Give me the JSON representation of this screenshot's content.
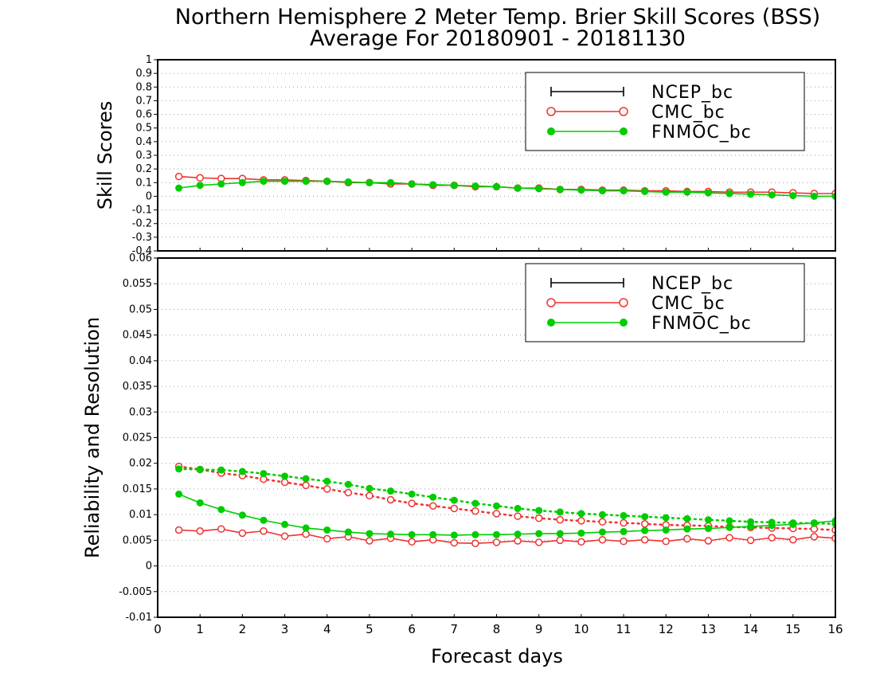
{
  "chart_data": {
    "type": "line",
    "title": "Northern Hemisphere 2 Meter Temp. Brier Skill Scores (BSS)",
    "subtitle": "Average For 20180901 - 20181130",
    "xlabel": "Forecast days",
    "xlim": [
      0,
      16
    ],
    "xticks": [
      "0",
      "1",
      "2",
      "3",
      "4",
      "5",
      "6",
      "7",
      "8",
      "9",
      "10",
      "11",
      "12",
      "13",
      "14",
      "15",
      "16"
    ],
    "x": [
      0.5,
      1,
      1.5,
      2,
      2.5,
      3,
      3.5,
      4,
      4.5,
      5,
      5.5,
      6,
      6.5,
      7,
      7.5,
      8,
      8.5,
      9,
      9.5,
      10,
      10.5,
      11,
      11.5,
      12,
      12.5,
      13,
      13.5,
      14,
      14.5,
      15,
      15.5,
      16
    ],
    "colors": {
      "NCEP_bc": "#000000",
      "CMC_bc": "#ee3333",
      "FNMOC_bc": "#00cc00"
    },
    "panels": [
      {
        "ylabel": "Skill Scores",
        "ylim": [
          -0.4,
          1
        ],
        "yticks": [
          "1",
          "0.9",
          "0.8",
          "0.7",
          "0.6",
          "0.5",
          "0.4",
          "0.3",
          "0.2",
          "0.1",
          "0",
          "-0.1",
          "-0.2",
          "-0.3",
          "-0.4"
        ],
        "grid": true,
        "legend": "top-right",
        "series": [
          {
            "name": "NCEP_bc",
            "marker": "plus",
            "style": "solid",
            "values": []
          },
          {
            "name": "CMC_bc",
            "marker": "open-circle",
            "style": "solid",
            "values": [
              0.145,
              0.135,
              0.13,
              0.13,
              0.12,
              0.12,
              0.115,
              0.11,
              0.1,
              0.1,
              0.09,
              0.09,
              0.08,
              0.08,
              0.07,
              0.07,
              0.06,
              0.06,
              0.05,
              0.05,
              0.045,
              0.045,
              0.04,
              0.04,
              0.035,
              0.035,
              0.03,
              0.03,
              0.03,
              0.025,
              0.02,
              0.02
            ]
          },
          {
            "name": "FNMOC_bc",
            "marker": "filled-circle",
            "style": "solid",
            "values": [
              0.06,
              0.08,
              0.09,
              0.1,
              0.11,
              0.11,
              0.11,
              0.11,
              0.105,
              0.1,
              0.1,
              0.09,
              0.085,
              0.08,
              0.075,
              0.07,
              0.06,
              0.055,
              0.05,
              0.045,
              0.04,
              0.04,
              0.035,
              0.03,
              0.03,
              0.025,
              0.02,
              0.015,
              0.01,
              0.005,
              0.0,
              0.0
            ]
          }
        ]
      },
      {
        "ylabel": "Reliability and Resolution",
        "ylim": [
          -0.01,
          0.06
        ],
        "yticks": [
          "0.06",
          "0.055",
          "0.05",
          "0.045",
          "0.04",
          "0.035",
          "0.03",
          "0.025",
          "0.02",
          "0.015",
          "0.01",
          "0.005",
          "0",
          "-0.005",
          "-0.01"
        ],
        "grid": true,
        "legend": "top-right",
        "series": [
          {
            "name": "NCEP_bc",
            "marker": "plus",
            "style": "solid",
            "values": []
          },
          {
            "name": "CMC_bc",
            "role": "reliability",
            "marker": "open-circle",
            "style": "solid",
            "values": [
              0.007,
              0.0068,
              0.0072,
              0.0064,
              0.0068,
              0.0058,
              0.0062,
              0.0053,
              0.0057,
              0.0049,
              0.0054,
              0.0047,
              0.0051,
              0.0045,
              0.0044,
              0.0046,
              0.0049,
              0.0046,
              0.005,
              0.0047,
              0.0051,
              0.0048,
              0.0051,
              0.0048,
              0.0053,
              0.0049,
              0.0055,
              0.005,
              0.0055,
              0.0051,
              0.0057,
              0.0054
            ]
          },
          {
            "name": "CMC_bc",
            "role": "resolution",
            "marker": "open-circle",
            "style": "dotted",
            "values": [
              0.0194,
              0.0188,
              0.0181,
              0.0176,
              0.0169,
              0.0163,
              0.0157,
              0.015,
              0.0143,
              0.0137,
              0.0129,
              0.0122,
              0.0117,
              0.0112,
              0.0107,
              0.0102,
              0.0097,
              0.0093,
              0.009,
              0.0088,
              0.0086,
              0.0084,
              0.0082,
              0.008,
              0.0079,
              0.0078,
              0.0076,
              0.0075,
              0.0074,
              0.0073,
              0.0072,
              0.007
            ]
          },
          {
            "name": "FNMOC_bc",
            "role": "reliability",
            "marker": "filled-circle",
            "style": "solid",
            "values": [
              0.014,
              0.0123,
              0.011,
              0.0099,
              0.0089,
              0.0081,
              0.0074,
              0.007,
              0.0066,
              0.0063,
              0.0062,
              0.0061,
              0.0061,
              0.006,
              0.0061,
              0.0061,
              0.0062,
              0.0063,
              0.0063,
              0.0064,
              0.0066,
              0.0067,
              0.0069,
              0.007,
              0.0072,
              0.0073,
              0.0075,
              0.0077,
              0.0079,
              0.0081,
              0.0084,
              0.0088
            ]
          },
          {
            "name": "FNMOC_bc",
            "role": "resolution",
            "marker": "filled-circle",
            "style": "dotted",
            "values": [
              0.0189,
              0.0188,
              0.0187,
              0.0184,
              0.018,
              0.0175,
              0.017,
              0.0165,
              0.0159,
              0.0151,
              0.0146,
              0.014,
              0.0134,
              0.0128,
              0.0122,
              0.0117,
              0.0112,
              0.0108,
              0.0105,
              0.0102,
              0.01,
              0.0098,
              0.0096,
              0.0094,
              0.0092,
              0.009,
              0.0088,
              0.0086,
              0.0085,
              0.0084,
              0.0083,
              0.0082
            ]
          }
        ]
      }
    ]
  }
}
